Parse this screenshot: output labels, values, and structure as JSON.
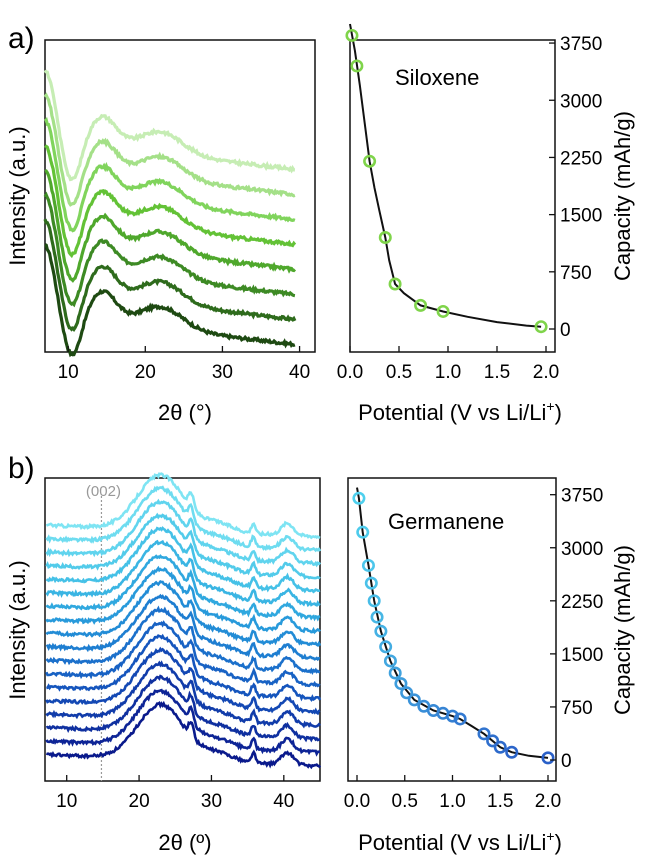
{
  "panels": [
    {
      "id": "a",
      "panel_label": "a)",
      "xrd": {
        "xlabel": "2θ (°)",
        "ylabel": "Intensity (a.u.)",
        "xticks": [
          10,
          20,
          30,
          40
        ],
        "xlim": [
          7,
          42
        ],
        "annotation": "",
        "n_curves": 8,
        "colors": [
          "#1e4a12",
          "#2e6b1c",
          "#3d8a24",
          "#4fa82c",
          "#63c236",
          "#80d45c",
          "#a4e088",
          "#c6edb4"
        ]
      },
      "capacity": {
        "text_label": "Siloxene",
        "xlabel": "Potential (V vs Li/Li",
        "xlabel_sup": "+",
        "xlabel_close": ")",
        "ylabel": "Capacity (mAh/g)",
        "xticks": [
          "0.0",
          "0.5",
          "1.0",
          "1.5",
          "2.0"
        ],
        "yticks": [
          "0",
          "750",
          "1500",
          "2250",
          "3000",
          "3750"
        ]
      }
    },
    {
      "id": "b",
      "panel_label": "b)",
      "xrd": {
        "xlabel": "2θ (º)",
        "ylabel": "Intensity (a.u.)",
        "xticks": [
          10,
          20,
          30,
          40
        ],
        "xlim": [
          7,
          45
        ],
        "annotation": "(002)",
        "n_curves": 18,
        "colors": [
          "#0a1a8c",
          "#0d2496",
          "#0f30a0",
          "#113caa",
          "#1348b4",
          "#1555bd",
          "#1862c4",
          "#1b70cb",
          "#1e7ed1",
          "#228cd6",
          "#289adb",
          "#30a8df",
          "#3ab5e3",
          "#45c1e7",
          "#52cbea",
          "#60d4ee",
          "#6edcf0",
          "#7ee4f3"
        ]
      },
      "capacity": {
        "text_label": "Germanene",
        "xlabel": "Potential (V vs Li/Li",
        "xlabel_sup": "+",
        "xlabel_close": ")",
        "ylabel": "Capacity (mAh/g)",
        "xticks": [
          "0.0",
          "0.5",
          "1.0",
          "1.5",
          "2.0"
        ],
        "yticks": [
          "0",
          "750",
          "1500",
          "2250",
          "3000",
          "3750"
        ]
      }
    }
  ],
  "chart_data": [
    {
      "type": "line",
      "panel": "a",
      "subtype": "xrd_stack",
      "xlabel": "2θ (°)",
      "ylabel": "Intensity (a.u.)",
      "xlim": [
        7,
        40
      ],
      "series_count": 8,
      "features": {
        "broad_peaks": [
          14,
          22
        ],
        "dip": 10.5
      },
      "colors": [
        "#1e4a12",
        "#2e6b1c",
        "#3d8a24",
        "#4fa82c",
        "#63c236",
        "#80d45c",
        "#a4e088",
        "#c6edb4"
      ]
    },
    {
      "type": "scatter",
      "panel": "a",
      "text_label": "Siloxene",
      "xlabel": "Potential (V vs Li/Li+)",
      "ylabel": "Capacity (mAh/g)",
      "xlim": [
        0,
        2
      ],
      "ylim": [
        0,
        4000
      ],
      "points": [
        [
          0.02,
          3850
        ],
        [
          0.07,
          3450
        ],
        [
          0.2,
          2200
        ],
        [
          0.36,
          1200
        ],
        [
          0.46,
          590
        ],
        [
          0.72,
          310
        ],
        [
          0.95,
          230
        ],
        [
          1.95,
          30
        ]
      ],
      "curve": [
        [
          0.0,
          4000
        ],
        [
          0.05,
          3650
        ],
        [
          0.1,
          3200
        ],
        [
          0.15,
          2700
        ],
        [
          0.2,
          2200
        ],
        [
          0.25,
          1850
        ],
        [
          0.3,
          1550
        ],
        [
          0.36,
          1200
        ],
        [
          0.4,
          900
        ],
        [
          0.46,
          590
        ],
        [
          0.55,
          470
        ],
        [
          0.72,
          310
        ],
        [
          0.95,
          230
        ],
        [
          1.2,
          160
        ],
        [
          1.5,
          90
        ],
        [
          1.8,
          45
        ],
        [
          1.95,
          30
        ]
      ],
      "marker_color": "#7fd44a",
      "marker_edge": "#2e6b1c"
    },
    {
      "type": "line",
      "panel": "b",
      "subtype": "xrd_stack",
      "xlabel": "2θ (º)",
      "ylabel": "Intensity (a.u.)",
      "xlim": [
        7,
        45
      ],
      "series_count": 18,
      "features": {
        "peaks": [
          22.5,
          27.2,
          35.8,
          40.5
        ],
        "reference_line": 14.8
      },
      "annotation": "(002)"
    },
    {
      "type": "scatter",
      "panel": "b",
      "text_label": "Germanene",
      "xlabel": "Potential (V vs Li/Li+)",
      "ylabel": "Capacity (mAh/g)",
      "xlim": [
        0,
        2
      ],
      "ylim": [
        0,
        4000
      ],
      "points": [
        [
          0.02,
          3700
        ],
        [
          0.06,
          3220
        ],
        [
          0.12,
          2750
        ],
        [
          0.15,
          2500
        ],
        [
          0.18,
          2250
        ],
        [
          0.21,
          2020
        ],
        [
          0.25,
          1820
        ],
        [
          0.3,
          1600
        ],
        [
          0.35,
          1400
        ],
        [
          0.4,
          1230
        ],
        [
          0.46,
          1080
        ],
        [
          0.52,
          950
        ],
        [
          0.6,
          850
        ],
        [
          0.7,
          760
        ],
        [
          0.8,
          700
        ],
        [
          0.9,
          660
        ],
        [
          1.0,
          620
        ],
        [
          1.08,
          580
        ],
        [
          1.33,
          370
        ],
        [
          1.42,
          270
        ],
        [
          1.5,
          180
        ],
        [
          1.62,
          110
        ],
        [
          2.0,
          30
        ]
      ],
      "curve": [
        [
          0.0,
          3850
        ],
        [
          0.02,
          3700
        ],
        [
          0.06,
          3220
        ],
        [
          0.12,
          2750
        ],
        [
          0.18,
          2250
        ],
        [
          0.25,
          1820
        ],
        [
          0.35,
          1400
        ],
        [
          0.46,
          1080
        ],
        [
          0.6,
          850
        ],
        [
          0.8,
          700
        ],
        [
          1.0,
          620
        ],
        [
          1.08,
          580
        ],
        [
          1.2,
          480
        ],
        [
          1.33,
          370
        ],
        [
          1.5,
          180
        ],
        [
          1.62,
          110
        ],
        [
          1.8,
          60
        ],
        [
          2.0,
          30
        ]
      ],
      "marker_colors": [
        "#4fd0ee",
        "#2a60c8"
      ]
    }
  ]
}
